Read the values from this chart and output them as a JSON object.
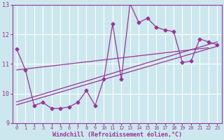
{
  "xlabel": "Windchill (Refroidissement éolien,°C)",
  "background_color": "#cce8ee",
  "grid_color": "#ffffff",
  "line_color": "#993399",
  "marker": "D",
  "marker_size": 2.5,
  "xlim": [
    -0.5,
    23.5
  ],
  "ylim": [
    9,
    13
  ],
  "xticks": [
    0,
    1,
    2,
    3,
    4,
    5,
    6,
    7,
    8,
    9,
    10,
    11,
    12,
    13,
    14,
    15,
    16,
    17,
    18,
    19,
    20,
    21,
    22,
    23
  ],
  "yticks": [
    9,
    10,
    11,
    12,
    13
  ],
  "main_series": [
    11.5,
    10.8,
    9.6,
    9.7,
    9.5,
    9.5,
    9.55,
    9.7,
    10.1,
    9.6,
    10.5,
    12.35,
    10.5,
    13.05,
    12.4,
    12.55,
    12.25,
    12.15,
    12.1,
    11.05,
    11.1,
    11.85,
    11.75,
    11.65
  ],
  "line1_x": [
    0,
    23
  ],
  "line1_y": [
    9.62,
    11.6
  ],
  "line2_x": [
    0,
    23
  ],
  "line2_y": [
    9.72,
    11.75
  ],
  "line3_x": [
    0,
    22
  ],
  "line3_y": [
    10.8,
    11.55
  ]
}
